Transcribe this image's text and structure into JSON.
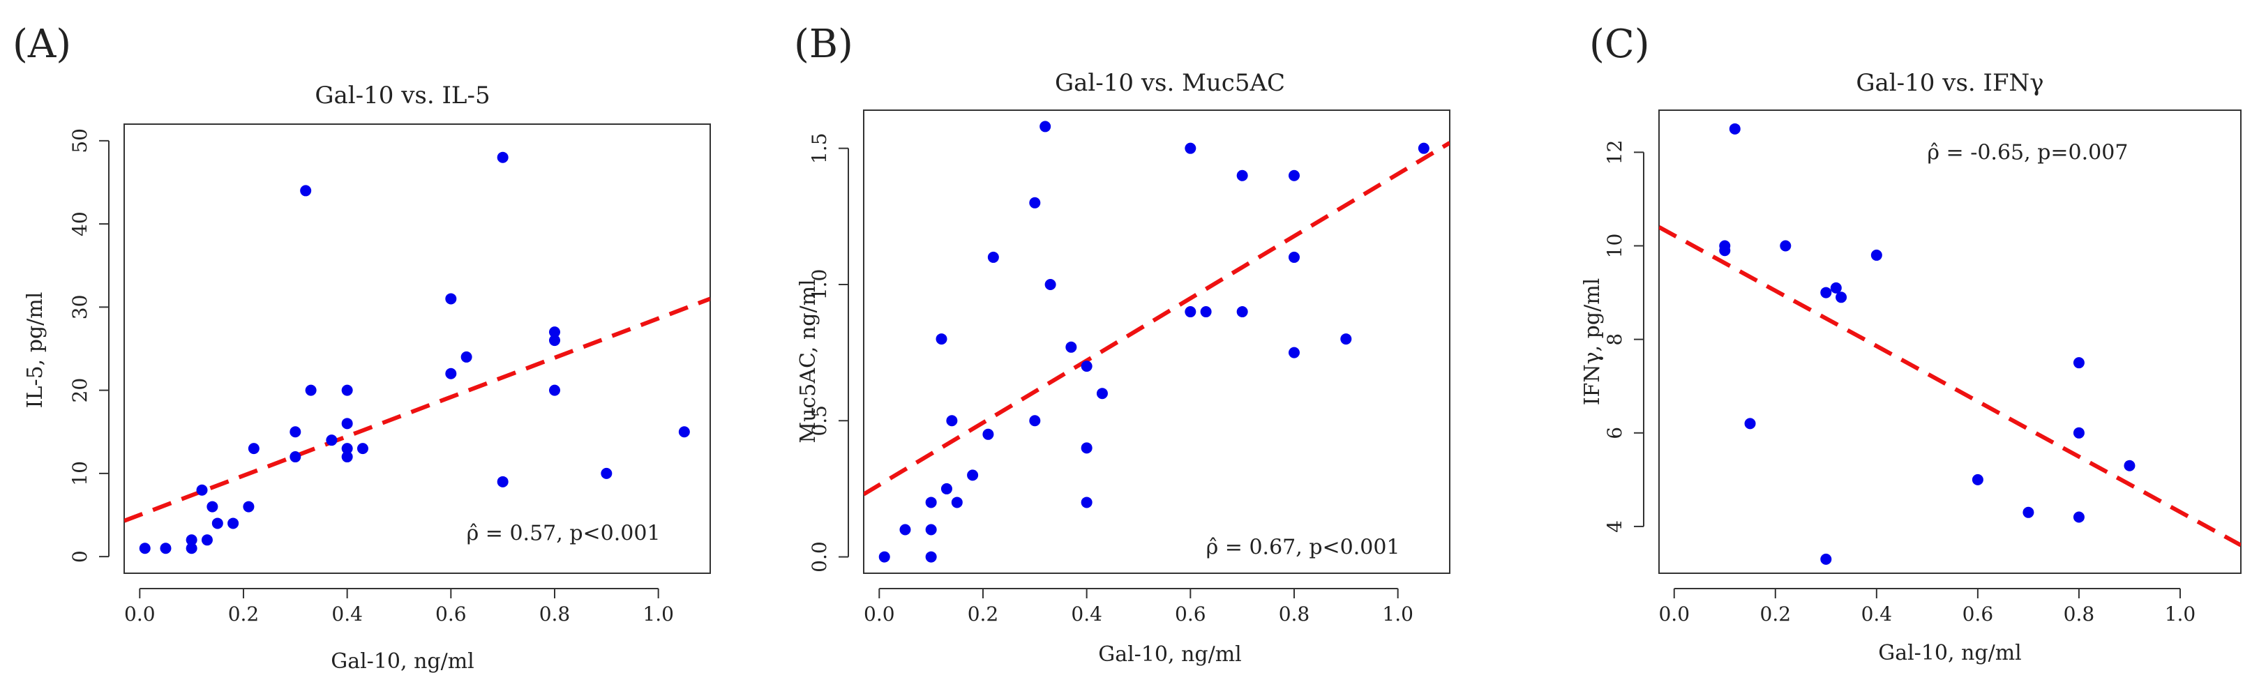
{
  "chart_data": [
    {
      "panel": "(A)",
      "type": "scatter",
      "title": "Gal-10 vs. IL-5",
      "xlabel": "Gal-10, ng/ml",
      "ylabel": "IL-5, pg/ml",
      "xlim": [
        -0.03,
        1.1
      ],
      "ylim": [
        -2,
        52
      ],
      "xticks": [
        0.0,
        0.2,
        0.4,
        0.6,
        0.8,
        1.0
      ],
      "xtick_labels": [
        "0.0",
        "0.2",
        "0.4",
        "0.6",
        "0.8",
        "1.0"
      ],
      "yticks": [
        0,
        10,
        20,
        30,
        40,
        50
      ],
      "ytick_labels": [
        "0",
        "10",
        "20",
        "30",
        "40",
        "50"
      ],
      "annotation": "ρ̂ = 0.57, p<0.001",
      "annotation_anchor": [
        0.63,
        2
      ],
      "fit_line": {
        "x": [
          -0.03,
          1.1
        ],
        "y": [
          4.3,
          31.0
        ]
      },
      "points": [
        [
          0.01,
          1
        ],
        [
          0.05,
          1
        ],
        [
          0.1,
          1
        ],
        [
          0.1,
          2
        ],
        [
          0.12,
          8
        ],
        [
          0.13,
          2
        ],
        [
          0.14,
          6
        ],
        [
          0.15,
          4
        ],
        [
          0.18,
          4
        ],
        [
          0.21,
          6
        ],
        [
          0.22,
          13
        ],
        [
          0.3,
          12
        ],
        [
          0.3,
          15
        ],
        [
          0.32,
          44
        ],
        [
          0.33,
          20
        ],
        [
          0.37,
          14
        ],
        [
          0.4,
          12
        ],
        [
          0.4,
          13
        ],
        [
          0.4,
          16
        ],
        [
          0.4,
          20
        ],
        [
          0.43,
          13
        ],
        [
          0.6,
          22
        ],
        [
          0.6,
          31
        ],
        [
          0.63,
          24
        ],
        [
          0.7,
          9
        ],
        [
          0.7,
          48
        ],
        [
          0.8,
          20
        ],
        [
          0.8,
          26
        ],
        [
          0.8,
          27
        ],
        [
          0.9,
          10
        ],
        [
          1.05,
          15
        ]
      ],
      "colors": {
        "points": "#0000ee",
        "fit": "#ee1111"
      }
    },
    {
      "panel": "(B)",
      "type": "scatter",
      "title": "Gal-10 vs. Muc5AC",
      "xlabel": "Gal-10, ng/ml",
      "ylabel": "Muc5AC, ng/ml",
      "xlim": [
        -0.03,
        1.1
      ],
      "ylim": [
        -0.06,
        1.64
      ],
      "xticks": [
        0.0,
        0.2,
        0.4,
        0.6,
        0.8,
        1.0
      ],
      "xtick_labels": [
        "0.0",
        "0.2",
        "0.4",
        "0.6",
        "0.8",
        "1.0"
      ],
      "yticks": [
        0.0,
        0.5,
        1.0,
        1.5
      ],
      "ytick_labels": [
        "0.0",
        "0.5",
        "1.0",
        "1.5"
      ],
      "annotation": "ρ̂ = 0.67, p<0.001",
      "annotation_anchor": [
        0.63,
        0.01
      ],
      "fit_line": {
        "x": [
          -0.03,
          1.1
        ],
        "y": [
          0.23,
          1.52
        ]
      },
      "points": [
        [
          0.01,
          0
        ],
        [
          0.05,
          0.1
        ],
        [
          0.1,
          0.2
        ],
        [
          0.1,
          0.1
        ],
        [
          0.1,
          0
        ],
        [
          0.12,
          0.8
        ],
        [
          0.13,
          0.25
        ],
        [
          0.14,
          0.5
        ],
        [
          0.15,
          0.2
        ],
        [
          0.18,
          0.3
        ],
        [
          0.21,
          0.45
        ],
        [
          0.22,
          1.1
        ],
        [
          0.3,
          1.3
        ],
        [
          0.3,
          0.5
        ],
        [
          0.32,
          1.58
        ],
        [
          0.33,
          1.0
        ],
        [
          0.37,
          0.77
        ],
        [
          0.4,
          0.7
        ],
        [
          0.4,
          0.4
        ],
        [
          0.4,
          0.2
        ],
        [
          0.43,
          0.6
        ],
        [
          0.6,
          1.5
        ],
        [
          0.6,
          0.9
        ],
        [
          0.63,
          0.9
        ],
        [
          0.7,
          1.4
        ],
        [
          0.7,
          0.9
        ],
        [
          0.8,
          1.4
        ],
        [
          0.8,
          1.1
        ],
        [
          0.8,
          0.75
        ],
        [
          0.9,
          0.8
        ],
        [
          1.05,
          1.5
        ]
      ],
      "colors": {
        "points": "#0000ee",
        "fit": "#ee1111"
      }
    },
    {
      "panel": "(C)",
      "type": "scatter",
      "title": "Gal-10 vs. IFNγ",
      "xlabel": "Gal-10, ng/ml",
      "ylabel": "IFNγ, pg/ml",
      "xlim": [
        -0.03,
        1.12
      ],
      "ylim": [
        3.0,
        12.9
      ],
      "xticks": [
        0.0,
        0.2,
        0.4,
        0.6,
        0.8,
        1.0
      ],
      "xtick_labels": [
        "0.0",
        "0.2",
        "0.4",
        "0.6",
        "0.8",
        "1.0"
      ],
      "yticks": [
        4,
        6,
        8,
        10,
        12
      ],
      "ytick_labels": [
        "4",
        "6",
        "8",
        "10",
        "12"
      ],
      "annotation": "ρ̂ = -0.65, p=0.007",
      "annotation_anchor": [
        0.5,
        11.85
      ],
      "fit_line": {
        "x": [
          -0.03,
          1.12
        ],
        "y": [
          10.4,
          3.6
        ]
      },
      "points": [
        [
          0.1,
          10
        ],
        [
          0.1,
          9.9
        ],
        [
          0.12,
          12.5
        ],
        [
          0.15,
          6.2
        ],
        [
          0.22,
          10
        ],
        [
          0.3,
          9
        ],
        [
          0.3,
          3.3
        ],
        [
          0.32,
          9.1
        ],
        [
          0.33,
          8.9
        ],
        [
          0.4,
          9.8
        ],
        [
          0.6,
          5
        ],
        [
          0.7,
          4.3
        ],
        [
          0.8,
          7.5
        ],
        [
          0.8,
          6
        ],
        [
          0.8,
          4.2
        ],
        [
          0.9,
          5.3
        ]
      ],
      "colors": {
        "points": "#0000ee",
        "fit": "#ee1111"
      }
    }
  ]
}
